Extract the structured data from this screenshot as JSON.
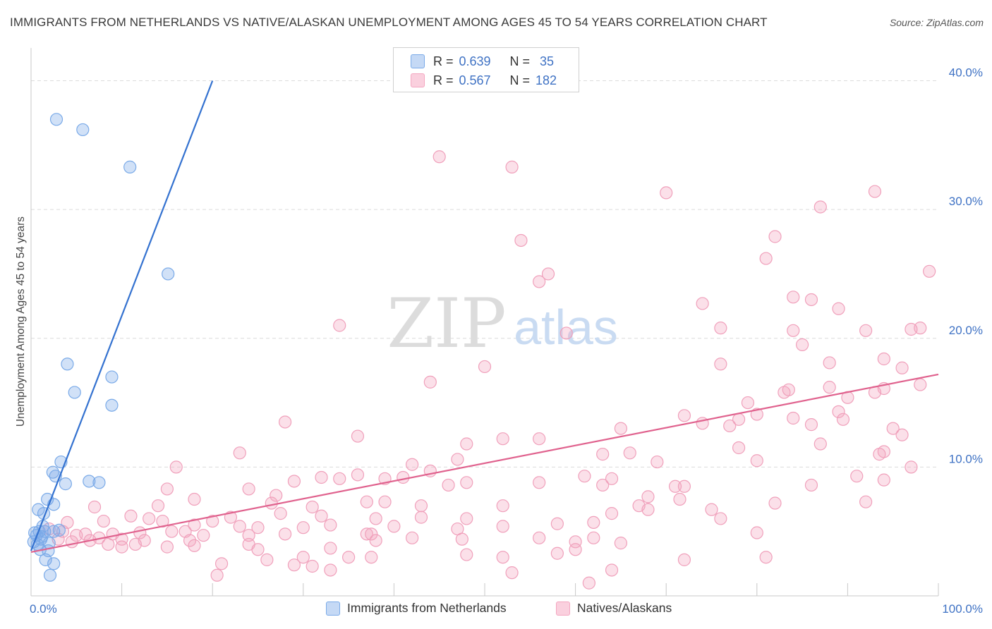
{
  "title": "IMMIGRANTS FROM NETHERLANDS VS NATIVE/ALASKAN UNEMPLOYMENT AMONG AGES 45 TO 54 YEARS CORRELATION CHART",
  "source": "Source: ZipAtlas.com",
  "watermark": {
    "zip": "ZIP",
    "atlas": "atlas"
  },
  "legend": {
    "r_label": "R =",
    "n_label": "N =",
    "series": [
      {
        "r": "0.639",
        "n": "35"
      },
      {
        "r": "0.567",
        "n": "182"
      }
    ]
  },
  "chart_data": {
    "type": "scatter",
    "title": "IMMIGRANTS FROM NETHERLANDS VS NATIVE/ALASKAN UNEMPLOYMENT AMONG AGES 45 TO 54 YEARS CORRELATION CHART",
    "xlabel": "",
    "ylabel": "Unemployment Among Ages 45 to 54 years",
    "xlim": [
      0,
      100
    ],
    "ylim": [
      0,
      42
    ],
    "x_tick_labels": {
      "left": "0.0%",
      "right": "100.0%"
    },
    "y_ticks": [
      10,
      20,
      30,
      40
    ],
    "y_tick_labels": [
      "10.0%",
      "20.0%",
      "30.0%",
      "40.0%"
    ],
    "grid": true,
    "legend_position": "bottom",
    "series": [
      {
        "name": "Immigrants from Netherlands",
        "color": "#7aaae8",
        "line_color": "#3472d0",
        "r": 0.639,
        "n": 35,
        "trend": {
          "x0": 0.0,
          "y0": 3.5,
          "x1": 20.0,
          "y1": 40.0
        },
        "points": [
          [
            2.8,
            37.0
          ],
          [
            5.7,
            36.2
          ],
          [
            10.9,
            33.3
          ],
          [
            15.1,
            25.0
          ],
          [
            4.0,
            18.0
          ],
          [
            4.8,
            15.8
          ],
          [
            8.9,
            17.0
          ],
          [
            8.9,
            14.8
          ],
          [
            3.3,
            10.4
          ],
          [
            2.4,
            9.6
          ],
          [
            2.7,
            9.3
          ],
          [
            3.8,
            8.7
          ],
          [
            6.4,
            8.9
          ],
          [
            7.5,
            8.8
          ],
          [
            1.8,
            7.5
          ],
          [
            2.5,
            7.1
          ],
          [
            0.8,
            6.7
          ],
          [
            1.4,
            6.4
          ],
          [
            1.3,
            5.4
          ],
          [
            2.5,
            5.0
          ],
          [
            3.1,
            5.1
          ],
          [
            0.4,
            4.9
          ],
          [
            0.6,
            4.7
          ],
          [
            1.1,
            4.4
          ],
          [
            0.9,
            5.0
          ],
          [
            1.5,
            5.0
          ],
          [
            0.3,
            4.2
          ],
          [
            0.7,
            4.0
          ],
          [
            2.0,
            4.1
          ],
          [
            1.0,
            3.6
          ],
          [
            1.9,
            3.5
          ],
          [
            1.6,
            2.8
          ],
          [
            2.5,
            2.5
          ],
          [
            2.1,
            1.6
          ],
          [
            1.2,
            4.6
          ]
        ]
      },
      {
        "name": "Natives/Alaskans",
        "color": "#f4a6c0",
        "line_color": "#e0628e",
        "r": 0.567,
        "n": 182,
        "trend": {
          "x0": 0.0,
          "y0": 3.4,
          "x1": 100.0,
          "y1": 17.2
        },
        "points": [
          [
            45.0,
            34.1
          ],
          [
            53.0,
            33.3
          ],
          [
            70.0,
            31.3
          ],
          [
            93.0,
            31.4
          ],
          [
            87.0,
            30.2
          ],
          [
            54.0,
            27.6
          ],
          [
            82.0,
            27.9
          ],
          [
            81.0,
            26.2
          ],
          [
            56.0,
            24.4
          ],
          [
            57.0,
            25.0
          ],
          [
            99.0,
            25.2
          ],
          [
            84.0,
            23.2
          ],
          [
            86.0,
            23.0
          ],
          [
            74.0,
            22.7
          ],
          [
            89.0,
            22.3
          ],
          [
            34.0,
            21.0
          ],
          [
            76.0,
            20.8
          ],
          [
            59.0,
            20.4
          ],
          [
            84.0,
            20.6
          ],
          [
            92.0,
            20.6
          ],
          [
            98.0,
            20.8
          ],
          [
            97.0,
            20.7
          ],
          [
            85.0,
            19.5
          ],
          [
            76.0,
            18.0
          ],
          [
            88.0,
            18.1
          ],
          [
            94.0,
            18.4
          ],
          [
            50.0,
            17.8
          ],
          [
            44.0,
            16.6
          ],
          [
            96.0,
            17.7
          ],
          [
            98.0,
            16.4
          ],
          [
            88.0,
            16.2
          ],
          [
            83.0,
            15.8
          ],
          [
            83.5,
            16.0
          ],
          [
            94.0,
            16.1
          ],
          [
            93.0,
            15.8
          ],
          [
            90.0,
            15.4
          ],
          [
            79.0,
            15.0
          ],
          [
            80.0,
            14.1
          ],
          [
            89.0,
            14.3
          ],
          [
            89.5,
            13.7
          ],
          [
            72.0,
            14.0
          ],
          [
            78.0,
            13.7
          ],
          [
            84.0,
            13.8
          ],
          [
            74.0,
            13.4
          ],
          [
            77.0,
            13.2
          ],
          [
            86.0,
            13.3
          ],
          [
            65.0,
            13.0
          ],
          [
            95.0,
            13.0
          ],
          [
            28.0,
            13.5
          ],
          [
            36.0,
            12.4
          ],
          [
            52.0,
            12.2
          ],
          [
            56.0,
            12.2
          ],
          [
            96.0,
            12.5
          ],
          [
            87.0,
            11.8
          ],
          [
            48.0,
            11.8
          ],
          [
            78.0,
            11.5
          ],
          [
            23.0,
            11.1
          ],
          [
            66.0,
            11.1
          ],
          [
            94.0,
            11.2
          ],
          [
            93.5,
            11.0
          ],
          [
            63.0,
            11.0
          ],
          [
            47.0,
            10.6
          ],
          [
            80.0,
            10.5
          ],
          [
            69.0,
            10.4
          ],
          [
            42.0,
            10.2
          ],
          [
            44.0,
            9.7
          ],
          [
            16.0,
            10.0
          ],
          [
            32.0,
            9.2
          ],
          [
            36.0,
            9.4
          ],
          [
            39.0,
            9.1
          ],
          [
            41.0,
            9.2
          ],
          [
            61.0,
            9.3
          ],
          [
            64.0,
            9.1
          ],
          [
            91.0,
            9.3
          ],
          [
            97.0,
            10.0
          ],
          [
            29.0,
            8.9
          ],
          [
            34.0,
            9.1
          ],
          [
            46.0,
            8.6
          ],
          [
            48.0,
            8.8
          ],
          [
            56.0,
            8.8
          ],
          [
            63.0,
            8.6
          ],
          [
            71.0,
            8.5
          ],
          [
            72.0,
            8.5
          ],
          [
            86.0,
            8.6
          ],
          [
            94.0,
            9.0
          ],
          [
            15.0,
            8.3
          ],
          [
            24.0,
            8.3
          ],
          [
            27.0,
            7.8
          ],
          [
            26.5,
            7.2
          ],
          [
            18.0,
            7.5
          ],
          [
            37.0,
            7.3
          ],
          [
            39.0,
            7.3
          ],
          [
            43.0,
            7.0
          ],
          [
            52.0,
            7.0
          ],
          [
            68.0,
            7.7
          ],
          [
            67.0,
            7.0
          ],
          [
            71.5,
            7.5
          ],
          [
            82.0,
            7.2
          ],
          [
            92.0,
            7.3
          ],
          [
            7.0,
            6.9
          ],
          [
            11.0,
            6.2
          ],
          [
            14.0,
            7.0
          ],
          [
            20.0,
            5.8
          ],
          [
            22.0,
            6.1
          ],
          [
            27.5,
            6.4
          ],
          [
            31.0,
            6.9
          ],
          [
            32.0,
            6.2
          ],
          [
            38.0,
            6.0
          ],
          [
            43.0,
            6.1
          ],
          [
            48.0,
            6.0
          ],
          [
            64.0,
            6.4
          ],
          [
            68.0,
            6.7
          ],
          [
            75.0,
            6.7
          ],
          [
            76.0,
            6.0
          ],
          [
            4.0,
            5.7
          ],
          [
            8.0,
            5.8
          ],
          [
            13.0,
            6.0
          ],
          [
            14.5,
            5.8
          ],
          [
            18.0,
            5.5
          ],
          [
            23.0,
            5.4
          ],
          [
            25.0,
            5.3
          ],
          [
            30.0,
            5.3
          ],
          [
            33.0,
            5.5
          ],
          [
            40.0,
            5.4
          ],
          [
            47.0,
            5.2
          ],
          [
            58.0,
            5.6
          ],
          [
            62.0,
            5.7
          ],
          [
            52.0,
            5.4
          ],
          [
            2.0,
            5.2
          ],
          [
            3.5,
            5.0
          ],
          [
            5.0,
            4.7
          ],
          [
            6.0,
            4.8
          ],
          [
            7.5,
            4.5
          ],
          [
            9.0,
            4.8
          ],
          [
            10.0,
            4.4
          ],
          [
            12.0,
            4.9
          ],
          [
            12.5,
            4.3
          ],
          [
            15.5,
            5.0
          ],
          [
            17.0,
            5.0
          ],
          [
            17.5,
            4.3
          ],
          [
            19.0,
            4.7
          ],
          [
            24.0,
            4.7
          ],
          [
            28.0,
            4.8
          ],
          [
            37.0,
            4.8
          ],
          [
            37.5,
            4.8
          ],
          [
            42.0,
            4.5
          ],
          [
            47.5,
            4.4
          ],
          [
            62.0,
            4.5
          ],
          [
            80.0,
            4.9
          ],
          [
            3.0,
            4.4
          ],
          [
            4.5,
            4.2
          ],
          [
            6.5,
            4.3
          ],
          [
            8.5,
            4.0
          ],
          [
            10.0,
            3.8
          ],
          [
            11.5,
            4.0
          ],
          [
            15.0,
            3.8
          ],
          [
            18.0,
            3.9
          ],
          [
            24.0,
            4.0
          ],
          [
            25.0,
            3.6
          ],
          [
            33.0,
            3.7
          ],
          [
            38.0,
            4.3
          ],
          [
            56.0,
            4.5
          ],
          [
            60.0,
            4.2
          ],
          [
            65.0,
            4.1
          ],
          [
            26.0,
            2.8
          ],
          [
            29.0,
            2.4
          ],
          [
            30.0,
            3.0
          ],
          [
            31.0,
            2.3
          ],
          [
            33.0,
            2.0
          ],
          [
            35.0,
            3.0
          ],
          [
            37.5,
            3.0
          ],
          [
            48.0,
            3.2
          ],
          [
            52.0,
            3.0
          ],
          [
            58.0,
            3.3
          ],
          [
            60.0,
            3.6
          ],
          [
            72.0,
            2.8
          ],
          [
            81.0,
            3.0
          ],
          [
            21.0,
            2.5
          ],
          [
            20.5,
            1.6
          ],
          [
            53.0,
            1.8
          ],
          [
            61.5,
            1.0
          ],
          [
            64.0,
            2.0
          ]
        ]
      }
    ]
  }
}
